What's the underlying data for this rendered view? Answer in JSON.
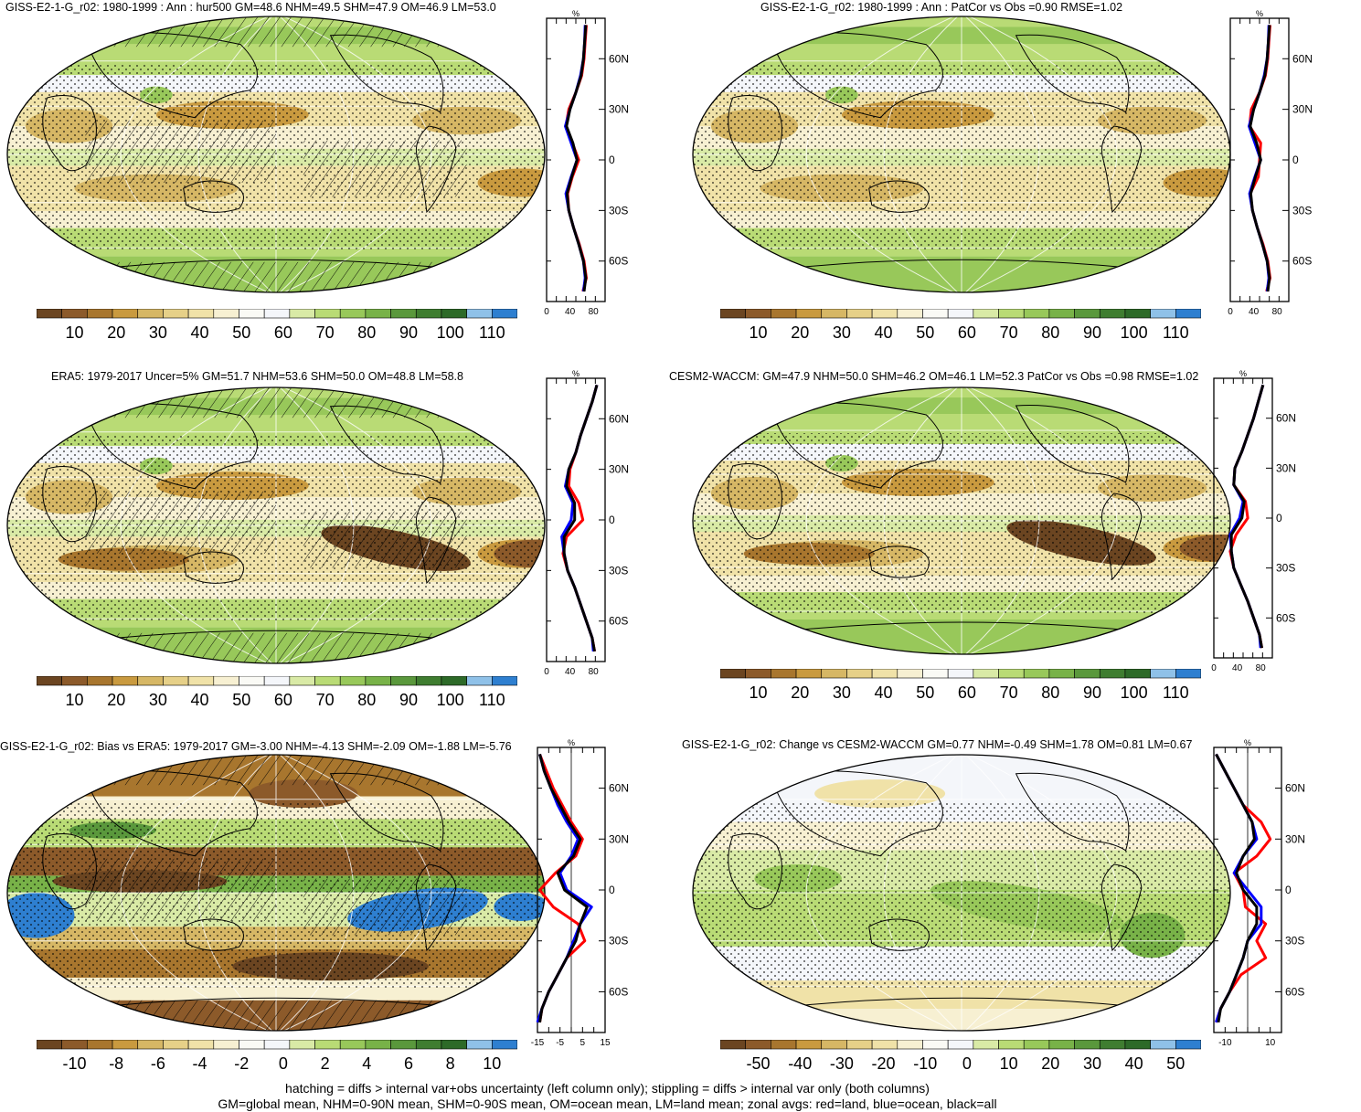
{
  "chart_data": [
    {
      "id": "p1",
      "type": "heatmap",
      "title": "GISS-E2-1-G_r02: 1980-1999 : Ann : hur500 GM=48.6 NHM=49.5 SHM=47.9 OM=46.9 LM=53.0",
      "map": {
        "field": "mean",
        "hatching": true,
        "stippling": true
      },
      "colorbar": {
        "labels": [
          "10",
          "20",
          "30",
          "40",
          "50",
          "60",
          "70",
          "80",
          "90",
          "100",
          "110"
        ],
        "colors": [
          "#6b4521",
          "#8c5a2a",
          "#a8762e",
          "#c99a3f",
          "#d6b765",
          "#e6d088",
          "#f0e2a8",
          "#f7f0d2",
          "#fafaf5",
          "#f4f6fa",
          "#d9eaa6",
          "#b9db75",
          "#98c85a",
          "#78b248",
          "#5a983c",
          "#3f7d30",
          "#2d6a28",
          "#8fc1e8",
          "#2e7fd0"
        ]
      },
      "profile": {
        "unit": "%",
        "y_ticks": [
          "60N",
          "30N",
          "0",
          "30S",
          "60S"
        ],
        "y_values": [
          60,
          30,
          0,
          -30,
          -60
        ],
        "xlim": [
          0,
          100
        ],
        "x_ticks": [
          0,
          40,
          80
        ],
        "lats": [
          80,
          70,
          60,
          50,
          40,
          30,
          20,
          10,
          0,
          -10,
          -20,
          -30,
          -40,
          -50,
          -60,
          -70,
          -78
        ],
        "series": [
          {
            "color": "#ff0000",
            "values": [
              68,
              66,
              64,
              60,
              50,
              38,
              33,
              44,
              55,
              44,
              36,
              38,
              46,
              56,
              64,
              68,
              62
            ]
          },
          {
            "color": "#0000ff",
            "values": [
              66,
              65,
              63,
              58,
              50,
              40,
              32,
              42,
              52,
              42,
              33,
              38,
              46,
              55,
              63,
              66,
              63
            ]
          },
          {
            "color": "#000000",
            "values": [
              67,
              65,
              63,
              59,
              50,
              40,
              34,
              45,
              52,
              43,
              35,
              38,
              46,
              55,
              63,
              67,
              64
            ]
          }
        ]
      }
    },
    {
      "id": "p2",
      "type": "heatmap",
      "title": "GISS-E2-1-G_r02: 1980-1999 : Ann : PatCor vs Obs =0.90 RMSE=1.02",
      "map": {
        "field": "mean",
        "hatching": false,
        "stippling": true
      },
      "colorbar": {
        "labels": [
          "10",
          "20",
          "30",
          "40",
          "50",
          "60",
          "70",
          "80",
          "90",
          "100",
          "110"
        ],
        "colors": [
          "#6b4521",
          "#8c5a2a",
          "#a8762e",
          "#c99a3f",
          "#d6b765",
          "#e6d088",
          "#f0e2a8",
          "#f7f0d2",
          "#fafaf5",
          "#f4f6fa",
          "#d9eaa6",
          "#b9db75",
          "#98c85a",
          "#78b248",
          "#5a983c",
          "#3f7d30",
          "#2d6a28",
          "#8fc1e8",
          "#2e7fd0"
        ]
      },
      "profile": {
        "unit": "%",
        "y_ticks": [
          "60N",
          "30N",
          "0",
          "30S",
          "60S"
        ],
        "y_values": [
          60,
          30,
          0,
          -30,
          -60
        ],
        "xlim": [
          0,
          100
        ],
        "x_ticks": [
          0,
          40,
          80
        ],
        "lats": [
          80,
          70,
          60,
          50,
          40,
          30,
          20,
          10,
          0,
          -10,
          -20,
          -30,
          -40,
          -50,
          -60,
          -70,
          -78
        ],
        "series": [
          {
            "color": "#ff0000",
            "values": [
              68,
              66,
              64,
              60,
              50,
              36,
              33,
              52,
              50,
              48,
              34,
              38,
              46,
              56,
              64,
              68,
              62
            ]
          },
          {
            "color": "#0000ff",
            "values": [
              66,
              65,
              63,
              58,
              50,
              40,
              32,
              42,
              52,
              42,
              33,
              38,
              46,
              55,
              63,
              66,
              63
            ]
          },
          {
            "color": "#000000",
            "values": [
              67,
              65,
              63,
              59,
              50,
              40,
              34,
              45,
              52,
              43,
              35,
              38,
              46,
              55,
              63,
              67,
              64
            ]
          }
        ]
      }
    },
    {
      "id": "p3",
      "type": "heatmap",
      "title": "ERA5: 1979-2017 Uncer=5% GM=51.7 NHM=53.6 SHM=50.0 OM=48.8 LM=58.8",
      "map": {
        "field": "obs",
        "hatching": true,
        "stippling": true
      },
      "colorbar": {
        "labels": [
          "10",
          "20",
          "30",
          "40",
          "50",
          "60",
          "70",
          "80",
          "90",
          "100",
          "110"
        ],
        "colors": [
          "#6b4521",
          "#8c5a2a",
          "#a8762e",
          "#c99a3f",
          "#d6b765",
          "#e6d088",
          "#f0e2a8",
          "#f7f0d2",
          "#fafaf5",
          "#f4f6fa",
          "#d9eaa6",
          "#b9db75",
          "#98c85a",
          "#78b248",
          "#5a983c",
          "#3f7d30",
          "#2d6a28",
          "#8fc1e8",
          "#2e7fd0"
        ]
      },
      "profile": {
        "unit": "%",
        "y_ticks": [
          "60N",
          "30N",
          "0",
          "30S",
          "60S"
        ],
        "y_values": [
          60,
          30,
          0,
          -30,
          -60
        ],
        "xlim": [
          0,
          100
        ],
        "x_ticks": [
          0,
          40,
          80
        ],
        "lats": [
          80,
          70,
          60,
          50,
          40,
          30,
          20,
          10,
          0,
          -10,
          -20,
          -30,
          -40,
          -50,
          -60,
          -70,
          -78
        ],
        "series": [
          {
            "color": "#ff0000",
            "values": [
              86,
              78,
              68,
              58,
              50,
              40,
              38,
              55,
              62,
              34,
              28,
              36,
              48,
              58,
              68,
              78,
              82
            ]
          },
          {
            "color": "#0000ff",
            "values": [
              86,
              78,
              68,
              58,
              50,
              38,
              32,
              45,
              42,
              26,
              30,
              36,
              48,
              58,
              68,
              78,
              80
            ]
          },
          {
            "color": "#000000",
            "values": [
              86,
              78,
              68,
              58,
              50,
              38,
              34,
              48,
              48,
              30,
              30,
              36,
              48,
              58,
              68,
              78,
              82
            ]
          }
        ]
      }
    },
    {
      "id": "p4",
      "type": "heatmap",
      "title": "CESM2-WACCM: GM=47.9 NHM=50.0 SHM=46.2 OM=46.1 LM=52.3 PatCor vs Obs =0.98 RMSE=1.02",
      "map": {
        "field": "model",
        "hatching": false,
        "stippling": true
      },
      "colorbar": {
        "labels": [
          "10",
          "20",
          "30",
          "40",
          "50",
          "60",
          "70",
          "80",
          "90",
          "100",
          "110"
        ],
        "colors": [
          "#6b4521",
          "#8c5a2a",
          "#a8762e",
          "#c99a3f",
          "#d6b765",
          "#e6d088",
          "#f0e2a8",
          "#f7f0d2",
          "#fafaf5",
          "#f4f6fa",
          "#d9eaa6",
          "#b9db75",
          "#98c85a",
          "#78b248",
          "#5a983c",
          "#3f7d30",
          "#2d6a28",
          "#8fc1e8",
          "#2e7fd0"
        ]
      },
      "profile": {
        "unit": "%",
        "y_ticks": [
          "60N",
          "30N",
          "0",
          "30S",
          "60S"
        ],
        "y_values": [
          60,
          30,
          0,
          -30,
          -60
        ],
        "xlim": [
          0,
          100
        ],
        "x_ticks": [
          0,
          40,
          80
        ],
        "lats": [
          80,
          70,
          60,
          50,
          40,
          30,
          20,
          10,
          0,
          -10,
          -20,
          -30,
          -40,
          -50,
          -60,
          -70,
          -78
        ],
        "series": [
          {
            "color": "#ff0000",
            "values": [
              84,
              76,
              68,
              58,
              48,
              36,
              34,
              54,
              58,
              38,
              28,
              34,
              46,
              58,
              68,
              78,
              82
            ]
          },
          {
            "color": "#0000ff",
            "values": [
              84,
              76,
              68,
              58,
              48,
              36,
              34,
              50,
              44,
              28,
              30,
              34,
              46,
              58,
              68,
              78,
              80
            ]
          },
          {
            "color": "#000000",
            "values": [
              84,
              76,
              68,
              58,
              48,
              36,
              34,
              52,
              48,
              30,
              30,
              34,
              46,
              58,
              68,
              78,
              82
            ]
          }
        ]
      }
    },
    {
      "id": "p5",
      "type": "heatmap",
      "title": "GISS-E2-1-G_r02: Bias vs ERA5: 1979-2017 GM=-3.00 NHM=-4.13 SHM=-2.09 OM=-1.88 LM=-5.76",
      "map": {
        "field": "bias",
        "hatching": true,
        "stippling": true
      },
      "colorbar": {
        "labels": [
          "-10",
          "-8",
          "-6",
          "-4",
          "-2",
          "0",
          "2",
          "4",
          "6",
          "8",
          "10"
        ],
        "colors": [
          "#6b4521",
          "#8c5a2a",
          "#a8762e",
          "#c99a3f",
          "#d6b765",
          "#e6d088",
          "#f0e2a8",
          "#f7f0d2",
          "#fafaf5",
          "#f4f6fa",
          "#d9eaa6",
          "#b9db75",
          "#98c85a",
          "#78b248",
          "#5a983c",
          "#3f7d30",
          "#2d6a28",
          "#8fc1e8",
          "#2e7fd0"
        ]
      },
      "profile": {
        "unit": "%",
        "y_ticks": [
          "60N",
          "30N",
          "0",
          "30S",
          "60S"
        ],
        "y_values": [
          60,
          30,
          0,
          -30,
          -60
        ],
        "xlim": [
          -15,
          15
        ],
        "x_ticks": [
          -15,
          -5,
          5,
          15
        ],
        "lats": [
          80,
          70,
          60,
          50,
          40,
          30,
          20,
          10,
          0,
          -10,
          -20,
          -30,
          -40,
          -50,
          -60,
          -70,
          -78
        ],
        "series": [
          {
            "color": "#ff0000",
            "values": [
              -14,
              -11,
              -8,
              -4,
              0,
              5,
              2,
              -7,
              -14,
              -8,
              3,
              6,
              -2,
              -6,
              -10,
              -13,
              -14
            ]
          },
          {
            "color": "#0000ff",
            "values": [
              -14,
              -12,
              -9,
              -6,
              -2,
              3,
              0,
              -5,
              -2,
              9,
              4,
              1,
              -2,
              -6,
              -10,
              -13,
              -15
            ]
          },
          {
            "color": "#000000",
            "values": [
              -14,
              -12,
              -9,
              -5,
              -1,
              4,
              1,
              -6,
              -3,
              7,
              4,
              2,
              -2,
              -6,
              -10,
              -13,
              -14
            ]
          }
        ]
      }
    },
    {
      "id": "p6",
      "type": "heatmap",
      "title": "GISS-E2-1-G_r02: Change vs CESM2-WACCM GM=0.77 NHM=-0.49 SHM=1.78 OM=0.81 LM=0.67",
      "map": {
        "field": "change",
        "hatching": false,
        "stippling": true
      },
      "colorbar": {
        "labels": [
          "-50",
          "-40",
          "-30",
          "-20",
          "-10",
          "0",
          "10",
          "20",
          "30",
          "40",
          "50"
        ],
        "colors": [
          "#6b4521",
          "#8c5a2a",
          "#a8762e",
          "#c99a3f",
          "#d6b765",
          "#e6d088",
          "#f0e2a8",
          "#f7f0d2",
          "#fafaf5",
          "#f4f6fa",
          "#d9eaa6",
          "#b9db75",
          "#98c85a",
          "#78b248",
          "#5a983c",
          "#3f7d30",
          "#2d6a28",
          "#8fc1e8",
          "#2e7fd0"
        ]
      },
      "profile": {
        "unit": "%",
        "y_ticks": [
          "60N",
          "30N",
          "0",
          "30S",
          "60S"
        ],
        "y_values": [
          60,
          30,
          0,
          -30,
          -60
        ],
        "xlim": [
          -15,
          15
        ],
        "x_ticks": [
          -10,
          10
        ],
        "lats": [
          80,
          70,
          60,
          50,
          40,
          30,
          20,
          10,
          0,
          -10,
          -20,
          -30,
          -40,
          -50,
          -60,
          -70,
          -78
        ],
        "series": [
          {
            "color": "#ff0000",
            "values": [
              -14,
              -10,
              -6,
              -2,
              6,
              10,
              4,
              -6,
              -2,
              -1,
              8,
              4,
              8,
              -3,
              -8,
              -12,
              -14
            ]
          },
          {
            "color": "#0000ff",
            "values": [
              -14,
              -10,
              -6,
              -2,
              2,
              4,
              -2,
              -6,
              0,
              6,
              6,
              0,
              -2,
              -5,
              -8,
              -12,
              -14
            ]
          },
          {
            "color": "#000000",
            "values": [
              -14,
              -10,
              -6,
              -2,
              2,
              3,
              -2,
              -5,
              -2,
              4,
              4,
              0,
              -2,
              -5,
              -8,
              -12,
              -13
            ]
          }
        ]
      }
    }
  ],
  "footer": {
    "line1": "hatching = diffs > internal var+obs uncertainty (left column only); stippling = diffs > internal var only (both columns)",
    "line2": "GM=global mean, NHM=0-90N mean, SHM=0-90S mean, OM=ocean mean, LM=land mean; zonal avgs: red=land, blue=ocean, black=all"
  }
}
